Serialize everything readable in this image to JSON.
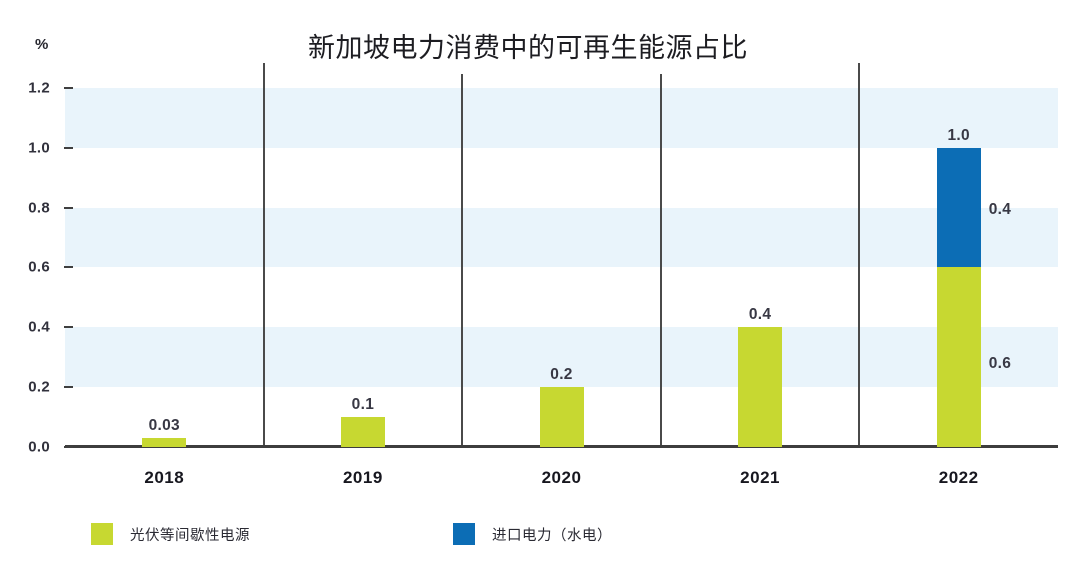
{
  "chart_data": {
    "type": "bar",
    "stacked": true,
    "title": "新加坡电力消费中的可再生能源占比",
    "unit_label": "%",
    "categories": [
      "2018",
      "2019",
      "2020",
      "2021",
      "2022"
    ],
    "series": [
      {
        "key": "solar",
        "name": "光伏等间歇性电源",
        "color": "#c7d831",
        "values": [
          0.03,
          0.1,
          0.2,
          0.4,
          0.6
        ]
      },
      {
        "key": "hydro",
        "name": "进口电力（水电）",
        "color": "#0c6db5",
        "values": [
          0,
          0,
          0,
          0,
          0.4
        ]
      }
    ],
    "value_labels": [
      {
        "category": "2018",
        "text": "0.03",
        "placement": "above"
      },
      {
        "category": "2019",
        "text": "0.1",
        "placement": "above"
      },
      {
        "category": "2020",
        "text": "0.2",
        "placement": "above"
      },
      {
        "category": "2021",
        "text": "0.4",
        "placement": "above"
      },
      {
        "category": "2022",
        "text": "1.0",
        "placement": "above"
      },
      {
        "category": "2022",
        "text": "0.4",
        "placement": "beside-top-segment"
      },
      {
        "category": "2022",
        "text": "0.6",
        "placement": "beside-bottom-segment"
      }
    ],
    "y_ticks": [
      "1.2",
      "1.0",
      "0.8",
      "0.6",
      "0.4",
      "0.2",
      "0.0"
    ],
    "ylim": [
      0,
      1.2
    ],
    "stripe_bands": [
      [
        1.2,
        1.0
      ],
      [
        0.8,
        0.6
      ],
      [
        0.4,
        0.2
      ]
    ],
    "grid": "horizontal-stripes",
    "legend_position": "bottom-left",
    "colors": {
      "stripe": "#e9f4fb",
      "axis": "#3d3d3d",
      "separator": "#4a4a4a",
      "title_text": "#1d1d22",
      "label_text": "#383844"
    }
  },
  "legend": {
    "items": [
      {
        "label": "光伏等间歇性电源",
        "color": "#c7d831"
      },
      {
        "label": "进口电力（水电）",
        "color": "#0c6db5"
      }
    ]
  }
}
